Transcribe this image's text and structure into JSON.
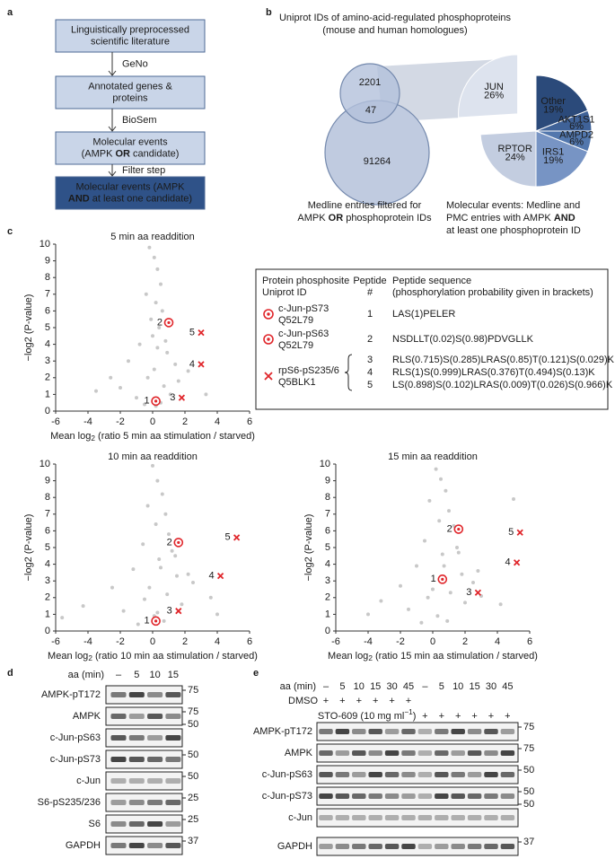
{
  "panel_labels": [
    "a",
    "b",
    "c",
    "d",
    "e"
  ],
  "flowchart": {
    "boxes": [
      {
        "lines": [
          "Linguistically preprocessed",
          "scientific literature"
        ]
      },
      {
        "lines": [
          "Annotated genes &",
          "proteins"
        ]
      },
      {
        "lines": [
          "Molecular events",
          [
            {
              "text": "(AMPK "
            },
            {
              "text": "OR",
              "bold": true
            },
            {
              "text": " candidate)"
            }
          ]
        ]
      },
      {
        "lines": [
          "Molecular events (AMPK",
          [
            {
              "text": "AND",
              "bold": true
            },
            {
              "text": " at least one candidate)"
            }
          ]
        ],
        "highlight": true
      }
    ],
    "steps": [
      "GeNo",
      "BioSem",
      "Filter step"
    ]
  },
  "venn": {
    "title": [
      "Uniprot IDs of amino-acid-regulated phosphoproteins",
      "(mouse and human homologues)"
    ],
    "top": 2201,
    "overlap": 47,
    "bottom": 91264,
    "caption": [
      "Medline entries filtered for",
      [
        {
          "text": "AMPK "
        },
        {
          "text": "OR",
          "bold": true
        },
        {
          "text": " phosphoprotein IDs"
        }
      ]
    ]
  },
  "pie_caption": [
    "Molecular events: Medline and",
    [
      {
        "text": "PMC entries with AMPK "
      },
      {
        "text": "AND",
        "bold": true
      }
    ],
    "at least one phosphoprotein ID"
  ],
  "chart_data": [
    {
      "type": "pie",
      "categories": [
        "Other",
        "AKT1S1",
        "AMPD2",
        "IRS1",
        "RPTOR",
        "JUN"
      ],
      "values": [
        19,
        6,
        6,
        19,
        24,
        26
      ],
      "value_labels": [
        "19%",
        "6%",
        "6%",
        "19%",
        "24%",
        "26%"
      ],
      "colors": [
        "#2b4a7a",
        "#3f6298",
        "#5277ad",
        "#7794c4",
        "#c3cde0",
        "#dde3ee"
      ],
      "explode": [
        false,
        false,
        false,
        false,
        false,
        true
      ]
    },
    {
      "type": "scatter",
      "title": "5 min aa readdition",
      "xlabel": [
        "Mean log",
        "2",
        " (ratio 5 min aa stimulation / starved)"
      ],
      "ylabel": "−log2 (P-value)",
      "xlim": [
        -6,
        6
      ],
      "ylim": [
        0,
        10
      ],
      "xticks": [
        -6,
        -4,
        -2,
        0,
        2,
        4,
        6
      ],
      "yticks": [
        0,
        1,
        2,
        3,
        4,
        5,
        6,
        7,
        8,
        9,
        10
      ],
      "series": [
        {
          "marker": "dot",
          "color": "#c8c8c8",
          "x": [
            -0.2,
            0.1,
            0.3,
            0.5,
            -0.4,
            0.2,
            0.6,
            -0.1,
            0.4,
            0.0,
            -0.8,
            0.9,
            -1.5,
            1.4,
            -2.6,
            2.2,
            -3.5,
            3.3,
            0.3,
            0.1,
            -0.3,
            0.7,
            1.1,
            -1.0,
            0.5,
            0.2,
            -0.5,
            0.8,
            1.6,
            -2.0
          ],
          "y": [
            9.8,
            9.2,
            8.5,
            7.6,
            7.0,
            6.5,
            6.0,
            5.5,
            5.0,
            4.5,
            4.0,
            3.5,
            3.0,
            2.8,
            2.0,
            2.4,
            1.2,
            1.0,
            3.8,
            2.5,
            2.0,
            1.5,
            1.0,
            0.8,
            0.5,
            0.3,
            0.4,
            4.2,
            1.8,
            1.4
          ]
        },
        {
          "marker": "target",
          "color": "#e0262b",
          "x": [
            0.2,
            1.0
          ],
          "y": [
            0.6,
            5.3
          ],
          "labels": [
            1,
            2
          ]
        },
        {
          "marker": "cross",
          "color": "#e0262b",
          "x": [
            1.8,
            3.0,
            3.0
          ],
          "y": [
            0.8,
            2.8,
            4.7
          ],
          "labels": [
            3,
            4,
            5
          ]
        }
      ]
    },
    {
      "type": "scatter",
      "title": "10 min aa readdition",
      "xlabel": [
        "Mean log",
        "2",
        " (ratio 10 min aa stimulation / starved)"
      ],
      "ylabel": "−log2 (P-value)",
      "xlim": [
        -6,
        6
      ],
      "ylim": [
        0,
        10
      ],
      "xticks": [
        -6,
        -4,
        -2,
        0,
        2,
        4,
        6
      ],
      "yticks": [
        0,
        1,
        2,
        3,
        4,
        5,
        6,
        7,
        8,
        9,
        10
      ],
      "series": [
        {
          "marker": "dot",
          "color": "#c8c8c8",
          "x": [
            0.0,
            0.3,
            0.6,
            -0.3,
            0.8,
            0.2,
            1.0,
            -0.6,
            1.2,
            0.4,
            -1.2,
            1.5,
            -2.5,
            2.5,
            -4.3,
            3.6,
            -5.6,
            4.0,
            0.5,
            -0.2,
            0.9,
            1.8,
            -1.8,
            0.1,
            0.7,
            -0.9,
            1.4,
            2.2,
            -0.5,
            0.3
          ],
          "y": [
            9.9,
            9.0,
            8.2,
            7.5,
            7.0,
            6.4,
            5.8,
            5.2,
            4.8,
            4.3,
            3.7,
            3.3,
            2.6,
            2.9,
            1.5,
            2.0,
            0.8,
            1.0,
            3.8,
            2.6,
            2.2,
            1.6,
            1.2,
            0.9,
            0.6,
            0.4,
            4.5,
            3.4,
            1.9,
            1.1
          ]
        },
        {
          "marker": "target",
          "color": "#e0262b",
          "x": [
            0.2,
            1.6
          ],
          "y": [
            0.6,
            5.3
          ],
          "labels": [
            1,
            2
          ]
        },
        {
          "marker": "cross",
          "color": "#e0262b",
          "x": [
            1.6,
            4.2,
            5.2
          ],
          "y": [
            1.2,
            3.3,
            5.6
          ],
          "labels": [
            3,
            4,
            5
          ]
        }
      ]
    },
    {
      "type": "scatter",
      "title": "15 min aa readdition",
      "xlabel": [
        "Mean log",
        "2",
        " (ratio 15 min aa stimulation / starved)"
      ],
      "ylabel": "−log2 (P-value)",
      "xlim": [
        -6,
        6
      ],
      "ylim": [
        0,
        10
      ],
      "xticks": [
        -6,
        -4,
        -2,
        0,
        2,
        4,
        6
      ],
      "yticks": [
        0,
        1,
        2,
        3,
        4,
        5,
        6,
        7,
        8,
        9,
        10
      ],
      "series": [
        {
          "marker": "dot",
          "color": "#c8c8c8",
          "x": [
            0.2,
            0.5,
            0.8,
            -0.2,
            1.0,
            0.4,
            1.3,
            -0.5,
            1.5,
            0.6,
            -1.0,
            1.8,
            -2.0,
            2.5,
            -3.2,
            3.0,
            -4.0,
            4.2,
            0.7,
            0.0,
            1.1,
            2.0,
            -1.5,
            0.3,
            0.9,
            -0.7,
            1.6,
            2.8,
            -0.3,
            5.0
          ],
          "y": [
            9.7,
            9.1,
            8.4,
            7.8,
            7.2,
            6.6,
            6.3,
            5.4,
            5.0,
            4.6,
            3.9,
            3.4,
            2.7,
            2.9,
            1.8,
            2.1,
            1.0,
            1.6,
            3.9,
            2.5,
            2.3,
            1.7,
            1.3,
            0.9,
            0.6,
            0.5,
            4.7,
            3.6,
            2.0,
            7.9
          ]
        },
        {
          "marker": "target",
          "color": "#e0262b",
          "x": [
            0.6,
            1.6
          ],
          "y": [
            3.1,
            6.1
          ],
          "labels": [
            1,
            2
          ]
        },
        {
          "marker": "cross",
          "color": "#e0262b",
          "x": [
            2.8,
            5.2,
            5.4
          ],
          "y": [
            2.3,
            4.1,
            5.9
          ],
          "labels": [
            3,
            4,
            5
          ]
        }
      ]
    }
  ],
  "table": {
    "headers": [
      [
        "Protein phosphosite",
        "Uniprot ID"
      ],
      [
        "Peptide",
        "#"
      ],
      [
        "Peptide sequence",
        "(phosphorylation probability given in brackets)"
      ]
    ],
    "groups": [
      {
        "marker": "target",
        "site": "c-Jun-pS73",
        "id": "Q52L79",
        "peptides": [
          {
            "n": 1,
            "seq": "LAS(1)PELER"
          }
        ]
      },
      {
        "marker": "target",
        "site": "c-Jun-pS63",
        "id": "Q52L79",
        "peptides": [
          {
            "n": 2,
            "seq": "NSDLLT(0.02)S(0.98)PDVGLLK"
          }
        ]
      },
      {
        "marker": "cross",
        "site": "rpS6-pS235/6",
        "id": "Q5BLK1",
        "peptides": [
          {
            "n": 3,
            "seq": "RLS(0.715)S(0.285)LRAS(0.85)T(0.121)S(0.029)K"
          },
          {
            "n": 4,
            "seq": "RLS(1)S(0.999)LRAS(0.376)T(0.494)S(0.13)K"
          },
          {
            "n": 5,
            "seq": "LS(0.898)S(0.102)LRAS(0.009)T(0.026)S(0.966)K"
          }
        ]
      }
    ]
  },
  "blot_d": {
    "header": "aa (min)",
    "lanes": [
      "–",
      "5",
      "10",
      "15"
    ],
    "rows": [
      {
        "label": "AMPK-pT172",
        "mw": [
          75
        ]
      },
      {
        "label": "AMPK",
        "mw": [
          75,
          50
        ]
      },
      {
        "label": "c-Jun-pS63",
        "mw": []
      },
      {
        "label": "c-Jun-pS73",
        "mw": [
          50
        ]
      },
      {
        "label": "c-Jun",
        "mw": [
          50
        ]
      },
      {
        "label": "S6-pS235/236",
        "mw": [
          25
        ]
      },
      {
        "label": "S6",
        "mw": [
          25
        ]
      },
      {
        "label": "GAPDH",
        "mw": [
          37
        ]
      }
    ]
  },
  "blot_e": {
    "header": "aa (min)",
    "lanes": [
      "–",
      "5",
      "10",
      "15",
      "30",
      "45",
      "–",
      "5",
      "10",
      "15",
      "30",
      "45"
    ],
    "treatments": [
      {
        "label": "DMSO",
        "marks": [
          "+",
          "+",
          "+",
          "+",
          "+",
          "+"
        ]
      },
      {
        "label": [
          "STO-609 (10 mg ml",
          "−1",
          ")"
        ],
        "marks": [
          "+",
          "+",
          "+",
          "+",
          "+",
          "+"
        ]
      }
    ],
    "rows": [
      {
        "label": "AMPK-pT172",
        "mw": [
          75
        ]
      },
      {
        "label": "AMPK",
        "mw": [
          75
        ]
      },
      {
        "label": "c-Jun-pS63",
        "mw": [
          50
        ]
      },
      {
        "label": "c-Jun-pS73",
        "mw": [
          50,
          50
        ]
      },
      {
        "label": "c-Jun",
        "mw": []
      },
      {
        "label": "GAPDH",
        "mw": [
          37
        ]
      }
    ]
  }
}
